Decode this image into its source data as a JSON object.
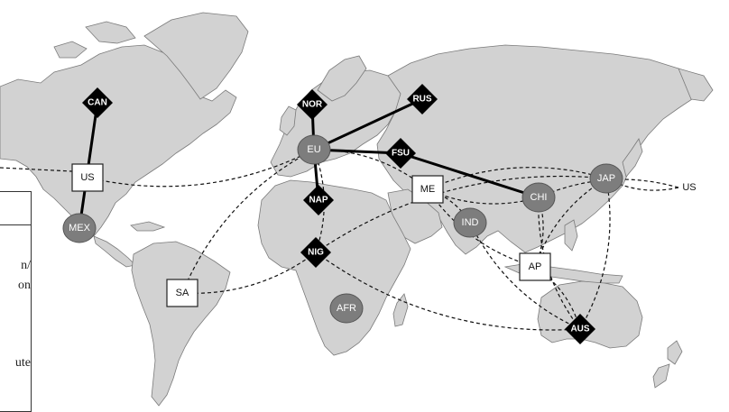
{
  "map": {
    "regions": [
      {
        "id": "CAN",
        "label": "CAN",
        "shape": "diamond"
      },
      {
        "id": "US",
        "label": "US",
        "shape": "square"
      },
      {
        "id": "MEX",
        "label": "MEX",
        "shape": "circle"
      },
      {
        "id": "SA",
        "label": "SA",
        "shape": "square"
      },
      {
        "id": "NOR",
        "label": "NOR",
        "shape": "diamond"
      },
      {
        "id": "RUS",
        "label": "RUS",
        "shape": "diamond"
      },
      {
        "id": "EU",
        "label": "EU",
        "shape": "circle"
      },
      {
        "id": "FSU",
        "label": "FSU",
        "shape": "diamond"
      },
      {
        "id": "NAP",
        "label": "NAP",
        "shape": "diamond"
      },
      {
        "id": "NIG",
        "label": "NIG",
        "shape": "diamond"
      },
      {
        "id": "ME",
        "label": "ME",
        "shape": "square"
      },
      {
        "id": "IND",
        "label": "IND",
        "shape": "circle"
      },
      {
        "id": "CHI",
        "label": "CHI",
        "shape": "circle"
      },
      {
        "id": "JAP",
        "label": "JAP",
        "shape": "circle"
      },
      {
        "id": "AFR",
        "label": "AFR",
        "shape": "circle"
      },
      {
        "id": "AP",
        "label": "AP",
        "shape": "square"
      },
      {
        "id": "AUS",
        "label": "AUS",
        "shape": "diamond"
      }
    ],
    "us_right_label": "US",
    "pipelines": [
      [
        "CAN",
        "MEX"
      ],
      [
        "NOR",
        "EU"
      ],
      [
        "RUS",
        "EU"
      ],
      [
        "EU",
        "FSU"
      ],
      [
        "FSU",
        "CHI"
      ],
      [
        "EU",
        "NAP"
      ]
    ],
    "shipping_routes": [
      [
        "US",
        "EU"
      ],
      [
        "SA",
        "EU"
      ],
      [
        "NIG",
        "EU"
      ],
      [
        "NIG",
        "SA"
      ],
      [
        "ME",
        "EU"
      ],
      [
        "ME",
        "IND"
      ],
      [
        "ME",
        "CHI"
      ],
      [
        "ME",
        "JAP"
      ],
      [
        "ME",
        "AP"
      ],
      [
        "AUS",
        "CHI"
      ],
      [
        "AUS",
        "JAP"
      ],
      [
        "AUS",
        "IND"
      ],
      [
        "AUS",
        "AP"
      ],
      [
        "NIG",
        "JAP"
      ],
      [
        "NIG",
        "AUS"
      ],
      [
        "US_RIGHT",
        "JAP"
      ],
      [
        "US_RIGHT",
        "CHI"
      ],
      [
        "AP",
        "JAP"
      ],
      [
        "AP",
        "CHI"
      ]
    ],
    "colors": {
      "land": "#d2d2d2",
      "circle_fill": "#7d7d7d",
      "diamond_fill": "#000000",
      "square_fill": "#ffffff"
    }
  },
  "legend": {
    "fragment_1": "n/",
    "fragment_2": "on",
    "fragment_3": "ute"
  }
}
